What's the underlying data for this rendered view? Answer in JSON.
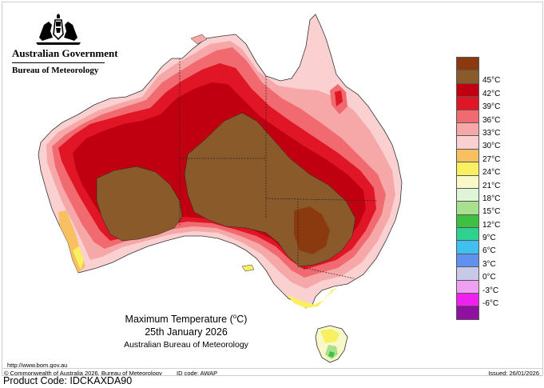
{
  "header": {
    "government": "Australian Government",
    "bureau": "Bureau of Meteorology"
  },
  "map": {
    "title": "Maximum Temperature (",
    "title_unit": "o",
    "title_suffix": "C)",
    "date": "25th January 2026",
    "agency": "Australian Bureau of Meteorology"
  },
  "legend": {
    "items": [
      {
        "label": "",
        "color": "#8b3a10"
      },
      {
        "label": "45°C",
        "color": "#8b5a2b"
      },
      {
        "label": "42°C",
        "color": "#c00010"
      },
      {
        "label": "39°C",
        "color": "#e01525"
      },
      {
        "label": "36°C",
        "color": "#f06a70"
      },
      {
        "label": "33°C",
        "color": "#f6a8a8"
      },
      {
        "label": "30°C",
        "color": "#fbd0d0"
      },
      {
        "label": "27°C",
        "color": "#f8c060"
      },
      {
        "label": "24°C",
        "color": "#f8f060"
      },
      {
        "label": "21°C",
        "color": "#f8f8c8"
      },
      {
        "label": "18°C",
        "color": "#e0f4d8"
      },
      {
        "label": "15°C",
        "color": "#a8e090"
      },
      {
        "label": "12°C",
        "color": "#40c040"
      },
      {
        "label": "9°C",
        "color": "#30d090"
      },
      {
        "label": "6°C",
        "color": "#40c0f0"
      },
      {
        "label": "3°C",
        "color": "#6090f0"
      },
      {
        "label": "0°C",
        "color": "#c8c8e8"
      },
      {
        "label": "-3°C",
        "color": "#f0a0f0"
      },
      {
        "label": "-6°C",
        "color": "#f020f0"
      },
      {
        "label": "",
        "color": "#9010a0"
      }
    ]
  },
  "footer": {
    "url": "http://www.bom.gov.au",
    "copyright": "© Commonwealth of Australia 2026, Bureau of Meteorology",
    "id_code": "ID code: AWAP",
    "issued": "Issued: 26/01/2026",
    "product_code": "Product Code: IDCKAXDA90"
  }
}
